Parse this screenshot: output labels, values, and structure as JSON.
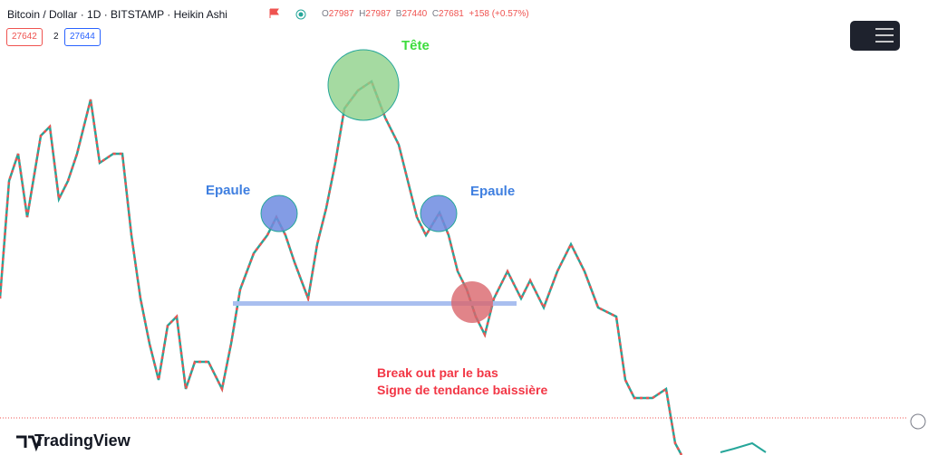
{
  "header": {
    "symbol": "Bitcoin / Dollar · 1D · BITSTAMP · Heikin Ashi",
    "ohlc": [
      {
        "key": "O",
        "value": "27987"
      },
      {
        "key": "H",
        "value": "27987"
      },
      {
        "key": "B",
        "value": "27440"
      },
      {
        "key": "C",
        "value": "27681"
      }
    ],
    "change": "+158 (+0.57%)"
  },
  "price_boxes": {
    "bid": "27642",
    "spread": "2",
    "ask": "27644"
  },
  "annotations": {
    "head": "Tête",
    "left_shoulder": "Epaule",
    "right_shoulder": "Epaule",
    "breakout": [
      "Break out par le bas",
      "Signe de tendance baissière"
    ]
  },
  "brand": "TradingView"
}
